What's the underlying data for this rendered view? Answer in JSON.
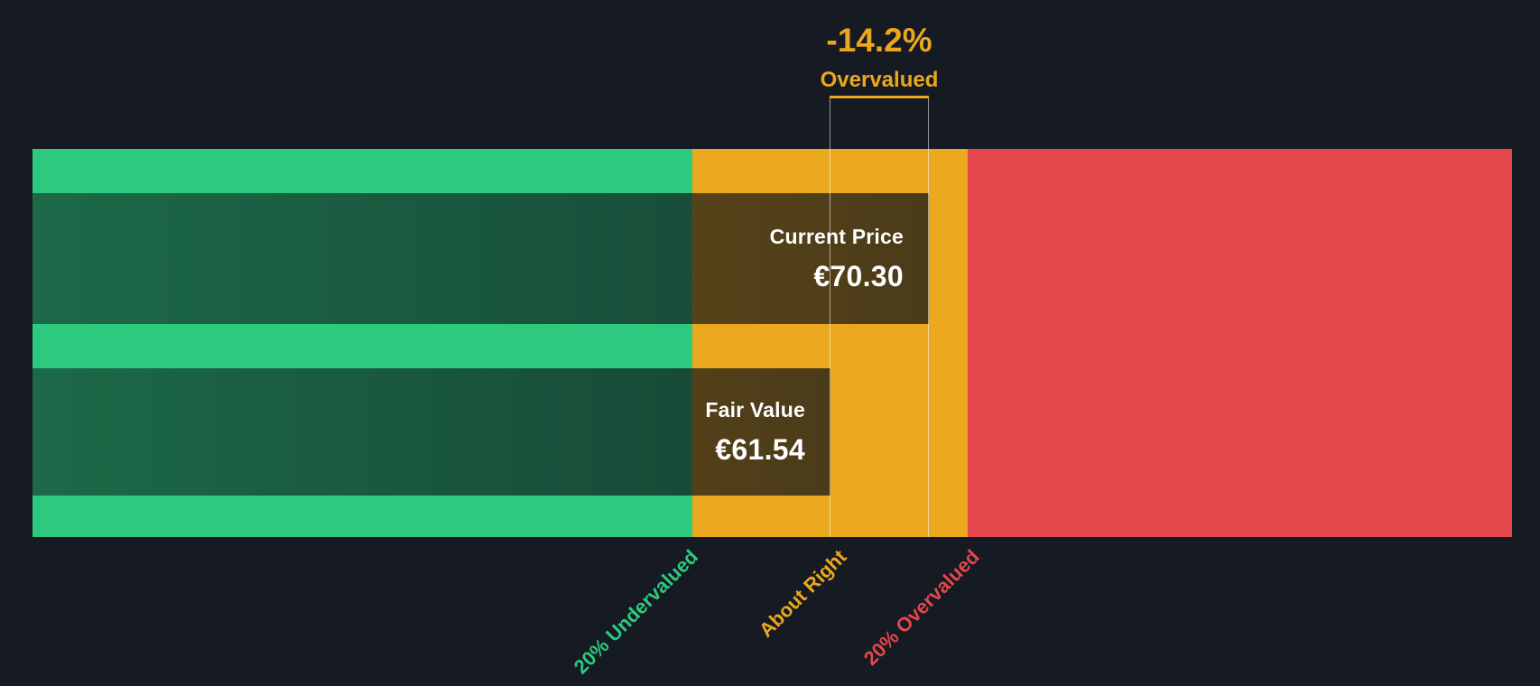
{
  "theme": {
    "background": "#151A23",
    "undervalued_color": "#2DC97E",
    "about_right_color": "#EBA71E",
    "overvalued_color": "#E4474B",
    "bar_overlay_color": "rgba(13,17,23,0.65)",
    "text_color": "#FFFFFF"
  },
  "annotation": {
    "percent": "-14.2%",
    "label": "Overvalued"
  },
  "bars": {
    "current_price": {
      "label": "Current Price",
      "value": "€70.30"
    },
    "fair_value": {
      "label": "Fair Value",
      "value": "€61.54"
    }
  },
  "axis": {
    "undervalued_label": "20% Undervalued",
    "about_right_label": "About Right",
    "overvalued_label": "20% Overvalued"
  },
  "chart_data": {
    "type": "bar",
    "orientation": "horizontal",
    "series": [
      {
        "name": "Current Price",
        "value": 70.3
      },
      {
        "name": "Fair Value",
        "value": 61.54
      }
    ],
    "currency": "EUR",
    "delta_percent": -14.2,
    "delta_label": "Overvalued",
    "zones": [
      {
        "label": "20% Undervalued",
        "color": "#2DC97E"
      },
      {
        "label": "About Right",
        "color": "#EBA71E"
      },
      {
        "label": "20% Overvalued",
        "color": "#E4474B"
      }
    ],
    "legend_position": "none",
    "grid": false
  }
}
